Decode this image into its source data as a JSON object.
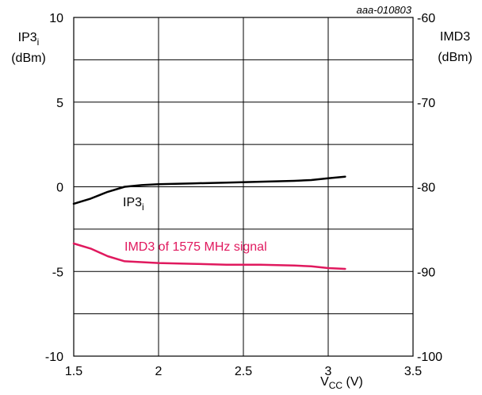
{
  "chart_data": {
    "type": "line",
    "figure_id": "aaa-010803",
    "x_axis": {
      "label_main": "V",
      "label_sub": "CC",
      "label_unit": " (V)",
      "range": [
        1.5,
        3.5
      ],
      "ticks": [
        "1.5",
        "2",
        "2.5",
        "3",
        "3.5"
      ]
    },
    "y_left": {
      "label_main": "IP3",
      "label_sub": "i",
      "label_unit": "(dBm)",
      "range": [
        -10,
        10
      ],
      "ticks": [
        "10",
        "5",
        "0",
        "-5",
        "-10"
      ]
    },
    "y_right": {
      "label_main": "IMD3",
      "label_unit": "(dBm)",
      "range": [
        -100,
        -60
      ],
      "ticks": [
        "-60",
        "-70",
        "-80",
        "-90",
        "-100"
      ]
    },
    "grid": true,
    "series": [
      {
        "name": "IP3i",
        "label_main": "IP3",
        "label_sub": "i",
        "axis": "left",
        "color": "#000000",
        "x": [
          1.5,
          1.6,
          1.7,
          1.8,
          1.9,
          2.0,
          2.2,
          2.4,
          2.6,
          2.8,
          2.9,
          3.0,
          3.1
        ],
        "y": [
          -1.0,
          -0.7,
          -0.3,
          0.0,
          0.1,
          0.15,
          0.2,
          0.25,
          0.3,
          0.35,
          0.4,
          0.5,
          0.6
        ]
      },
      {
        "name": "IMD3 of 1575 MHz signal",
        "axis": "right",
        "color": "#e0195e",
        "x": [
          1.5,
          1.6,
          1.7,
          1.8,
          1.9,
          2.0,
          2.2,
          2.4,
          2.6,
          2.8,
          2.9,
          3.0,
          3.1
        ],
        "y": [
          -86.7,
          -87.3,
          -88.2,
          -88.8,
          -88.9,
          -89.0,
          -89.1,
          -89.2,
          -89.2,
          -89.3,
          -89.4,
          -89.6,
          -89.7
        ]
      }
    ]
  }
}
